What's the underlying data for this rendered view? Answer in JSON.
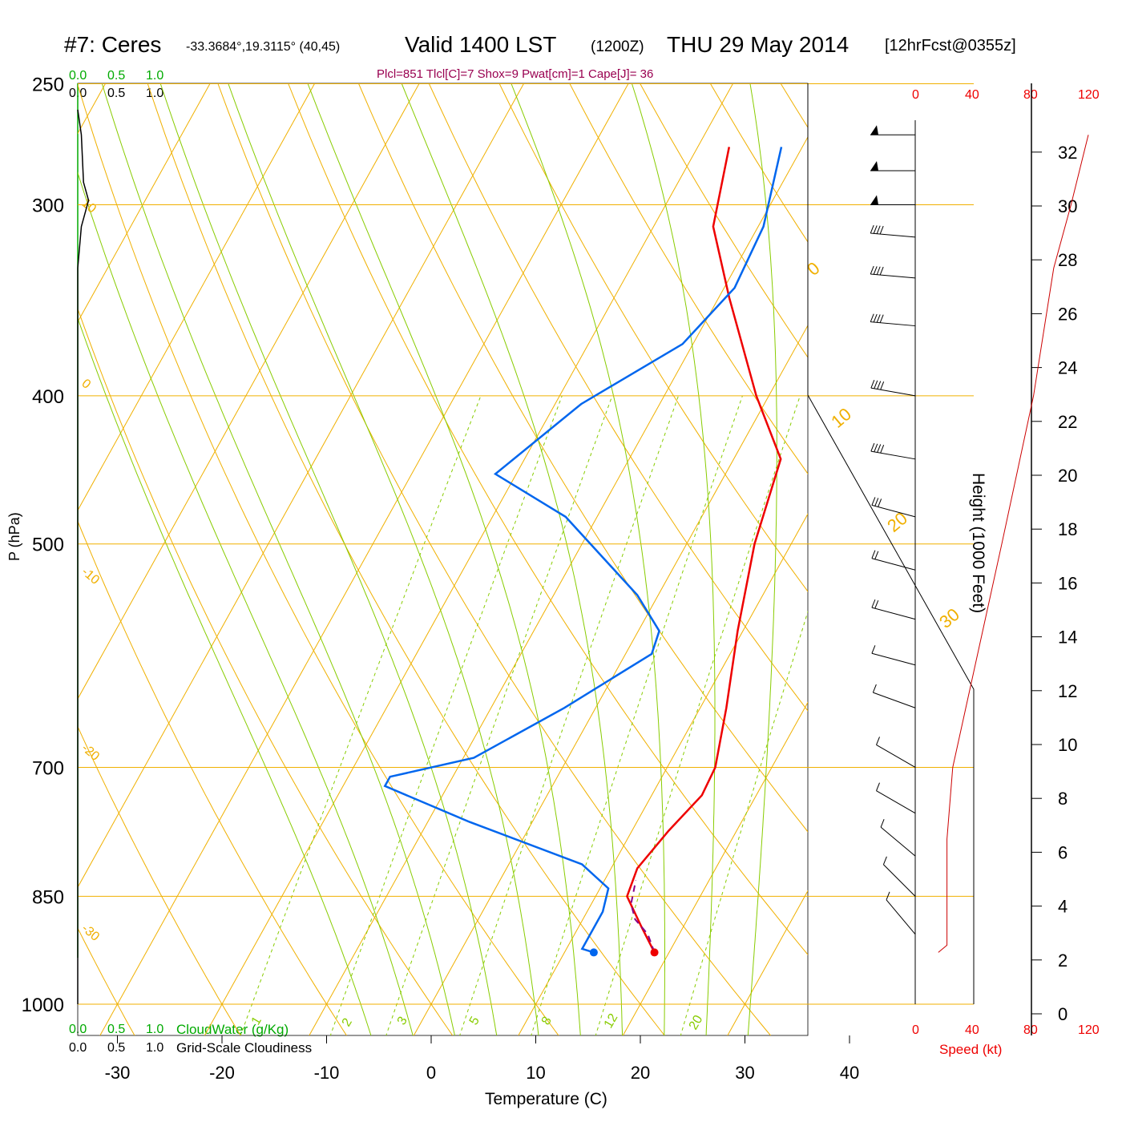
{
  "header": {
    "site": "#7: Ceres",
    "coords": "-33.3684°,19.3115° (40,45)",
    "valid": "Valid 1400 LST",
    "zulu": "(1200Z)",
    "day": "THU 29 May 2014",
    "forecast": "[12hrFcst@0355z]",
    "indices": "Plcl=851 Tlcl[C]=7 Shox=9 Pwat[cm]=1 Cape[J]= 36"
  },
  "top_scales": {
    "cloudwater_ticks": [
      "0.0",
      "0.5",
      "1.0"
    ],
    "cloudiness_ticks": [
      "0.0",
      "0.5",
      "1.0"
    ]
  },
  "bottom_scales": {
    "cloudwater_ticks": [
      "0.0",
      "0.5",
      "1.0"
    ],
    "cloudwater_label": "CloudWater (g/Kg)",
    "cloudiness_ticks": [
      "0.0",
      "0.5",
      "1.0"
    ],
    "cloudiness_label": "Grid-Scale Cloudiness"
  },
  "speed_axis": {
    "ticks": [
      "0",
      "40",
      "80",
      "120"
    ],
    "label": "Speed (kt)"
  },
  "colors": {
    "isotherm": "#f0b000",
    "dry_adiabat": "#f0b000",
    "moist_adiabat": "#88cc00",
    "mixing_ratio": "#88cc00",
    "temperature": "#ee0000",
    "dewpoint": "#0066ee",
    "parcel": "#880088",
    "speed": "#cc0000",
    "cloudwater": "#00aa00"
  },
  "chart_data": {
    "type": "line",
    "title": "",
    "xlabel": "Temperature (C)",
    "ylabel": "P (hPa)",
    "y2label": "Height (1000 Feet)",
    "x_ticks": [
      -30,
      -20,
      -10,
      0,
      10,
      20,
      30,
      40
    ],
    "p_ticks": [
      250,
      300,
      400,
      500,
      700,
      850,
      1000
    ],
    "height_ticks": [
      0,
      2,
      4,
      6,
      8,
      10,
      12,
      14,
      16,
      18,
      20,
      22,
      24,
      26,
      28,
      30,
      32
    ],
    "isotherm_labels": [
      "10",
      "0",
      "-10",
      "-20",
      "-30"
    ],
    "dry_adiabat_labels": [
      "0",
      "10",
      "20",
      "30"
    ],
    "mixing_ratio_labels": [
      "1",
      "2",
      "3",
      "5",
      "8",
      "12",
      "20"
    ],
    "series": [
      {
        "name": "Temperature",
        "points": [
          [
            18.6,
            925
          ],
          [
            16.0,
            890
          ],
          [
            13.0,
            850
          ],
          [
            12.5,
            815
          ],
          [
            13.5,
            770
          ],
          [
            14.8,
            730
          ],
          [
            14.6,
            700
          ],
          [
            12.5,
            640
          ],
          [
            9.5,
            570
          ],
          [
            6.5,
            500
          ],
          [
            4.5,
            440
          ],
          [
            -1.2,
            400
          ],
          [
            -9.0,
            345
          ],
          [
            -14.3,
            310
          ],
          [
            -17.0,
            275
          ]
        ]
      },
      {
        "name": "Dewpoint",
        "points": [
          [
            12.8,
            925
          ],
          [
            11.5,
            920
          ],
          [
            11.5,
            870
          ],
          [
            10.8,
            840
          ],
          [
            7.0,
            810
          ],
          [
            -6.0,
            760
          ],
          [
            -16.0,
            720
          ],
          [
            -16.0,
            710
          ],
          [
            -9.0,
            690
          ],
          [
            -3.0,
            640
          ],
          [
            2.5,
            590
          ],
          [
            2.0,
            570
          ],
          [
            -2.0,
            540
          ],
          [
            -13.0,
            480
          ],
          [
            -22.0,
            450
          ],
          [
            -17.5,
            405
          ],
          [
            -11.0,
            370
          ],
          [
            -9.0,
            340
          ],
          [
            -9.5,
            310
          ],
          [
            -12.0,
            275
          ]
        ]
      },
      {
        "name": "Parcel",
        "points": [
          [
            18.6,
            925
          ],
          [
            17.0,
            900
          ],
          [
            15.0,
            880
          ],
          [
            13.8,
            860
          ],
          [
            13.0,
            830
          ]
        ]
      },
      {
        "name": "Cloudiness",
        "points": [
          [
            0.0,
            1000
          ],
          [
            0.0,
            330
          ],
          [
            0.05,
            310
          ],
          [
            0.15,
            298
          ],
          [
            0.08,
            290
          ],
          [
            0.05,
            270
          ],
          [
            0.0,
            260
          ]
        ]
      },
      {
        "name": "Speed",
        "points": [
          [
            16,
            925
          ],
          [
            22,
            915
          ],
          [
            22,
            780
          ],
          [
            26,
            700
          ],
          [
            60,
            500
          ],
          [
            82,
            400
          ],
          [
            96,
            330
          ],
          [
            108,
            300
          ],
          [
            120,
            270
          ]
        ]
      }
    ],
    "winds": [
      {
        "p": 270,
        "speed": 55,
        "dir": 270
      },
      {
        "p": 285,
        "speed": 55,
        "dir": 270
      },
      {
        "p": 300,
        "speed": 55,
        "dir": 270
      },
      {
        "p": 315,
        "speed": 45,
        "dir": 275
      },
      {
        "p": 335,
        "speed": 45,
        "dir": 275
      },
      {
        "p": 360,
        "speed": 45,
        "dir": 275
      },
      {
        "p": 400,
        "speed": 45,
        "dir": 280
      },
      {
        "p": 440,
        "speed": 40,
        "dir": 280
      },
      {
        "p": 480,
        "speed": 30,
        "dir": 285
      },
      {
        "p": 520,
        "speed": 25,
        "dir": 285
      },
      {
        "p": 560,
        "speed": 20,
        "dir": 285
      },
      {
        "p": 600,
        "speed": 15,
        "dir": 285
      },
      {
        "p": 640,
        "speed": 15,
        "dir": 290
      },
      {
        "p": 700,
        "speed": 15,
        "dir": 300
      },
      {
        "p": 750,
        "speed": 15,
        "dir": 300
      },
      {
        "p": 800,
        "speed": 15,
        "dir": 310
      },
      {
        "p": 850,
        "speed": 15,
        "dir": 315
      },
      {
        "p": 900,
        "speed": 15,
        "dir": 320
      }
    ]
  }
}
